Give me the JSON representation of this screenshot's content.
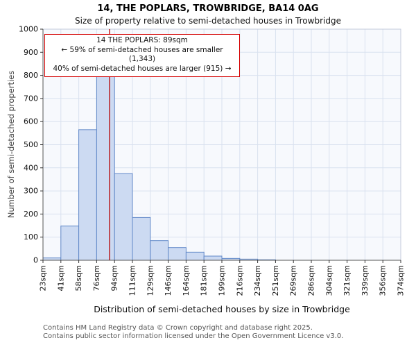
{
  "title": "14, THE POPLARS, TROWBRIDGE, BA14 0AG",
  "subtitle": "Size of property relative to semi-detached houses in Trowbridge",
  "annotation": {
    "line1": "14 THE POPLARS: 89sqm",
    "line2": "← 59% of semi-detached houses are smaller (1,343)",
    "line3": "40% of semi-detached houses are larger (915) →"
  },
  "footer": {
    "line1": "Contains HM Land Registry data © Crown copyright and database right 2025.",
    "line2": "Contains public sector information licensed under the Open Government Licence v3.0."
  },
  "chart_data": {
    "type": "bar",
    "title": "14, THE POPLARS, TROWBRIDGE, BA14 0AG",
    "subtitle": "Size of property relative to semi-detached houses in Trowbridge",
    "xlabel": "Distribution of semi-detached houses by size in Trowbridge",
    "ylabel": "Number of semi-detached properties",
    "categories": [
      "23sqm",
      "41sqm",
      "58sqm",
      "76sqm",
      "94sqm",
      "111sqm",
      "129sqm",
      "146sqm",
      "164sqm",
      "181sqm",
      "199sqm",
      "216sqm",
      "234sqm",
      "251sqm",
      "269sqm",
      "286sqm",
      "304sqm",
      "321sqm",
      "339sqm",
      "356sqm",
      "374sqm"
    ],
    "bin_edges_sqm": [
      23,
      41,
      58,
      76,
      94,
      111,
      129,
      146,
      164,
      181,
      199,
      216,
      234,
      251,
      269,
      286,
      304,
      321,
      339,
      356,
      374
    ],
    "values": [
      10,
      148,
      565,
      805,
      375,
      185,
      85,
      55,
      35,
      18,
      8,
      5,
      2,
      0,
      0,
      0,
      0,
      0,
      0,
      0
    ],
    "ylim": [
      0,
      1000
    ],
    "yticks": [
      0,
      100,
      200,
      300,
      400,
      500,
      600,
      700,
      800,
      900,
      1000
    ],
    "grid": true,
    "legend": false,
    "marker": {
      "sqm": 89,
      "label": "14 THE POPLARS: 89sqm",
      "smaller_pct": 59,
      "smaller_count": 1343,
      "larger_pct": 40,
      "larger_count": 915
    },
    "colors": {
      "bar_fill": "#ccdaf2",
      "bar_stroke": "#6088c8",
      "grid": "#d9e1ef",
      "plot_bg": "#f7f9fd",
      "marker_line": "#b40000",
      "annotation_border": "#d40000"
    }
  }
}
